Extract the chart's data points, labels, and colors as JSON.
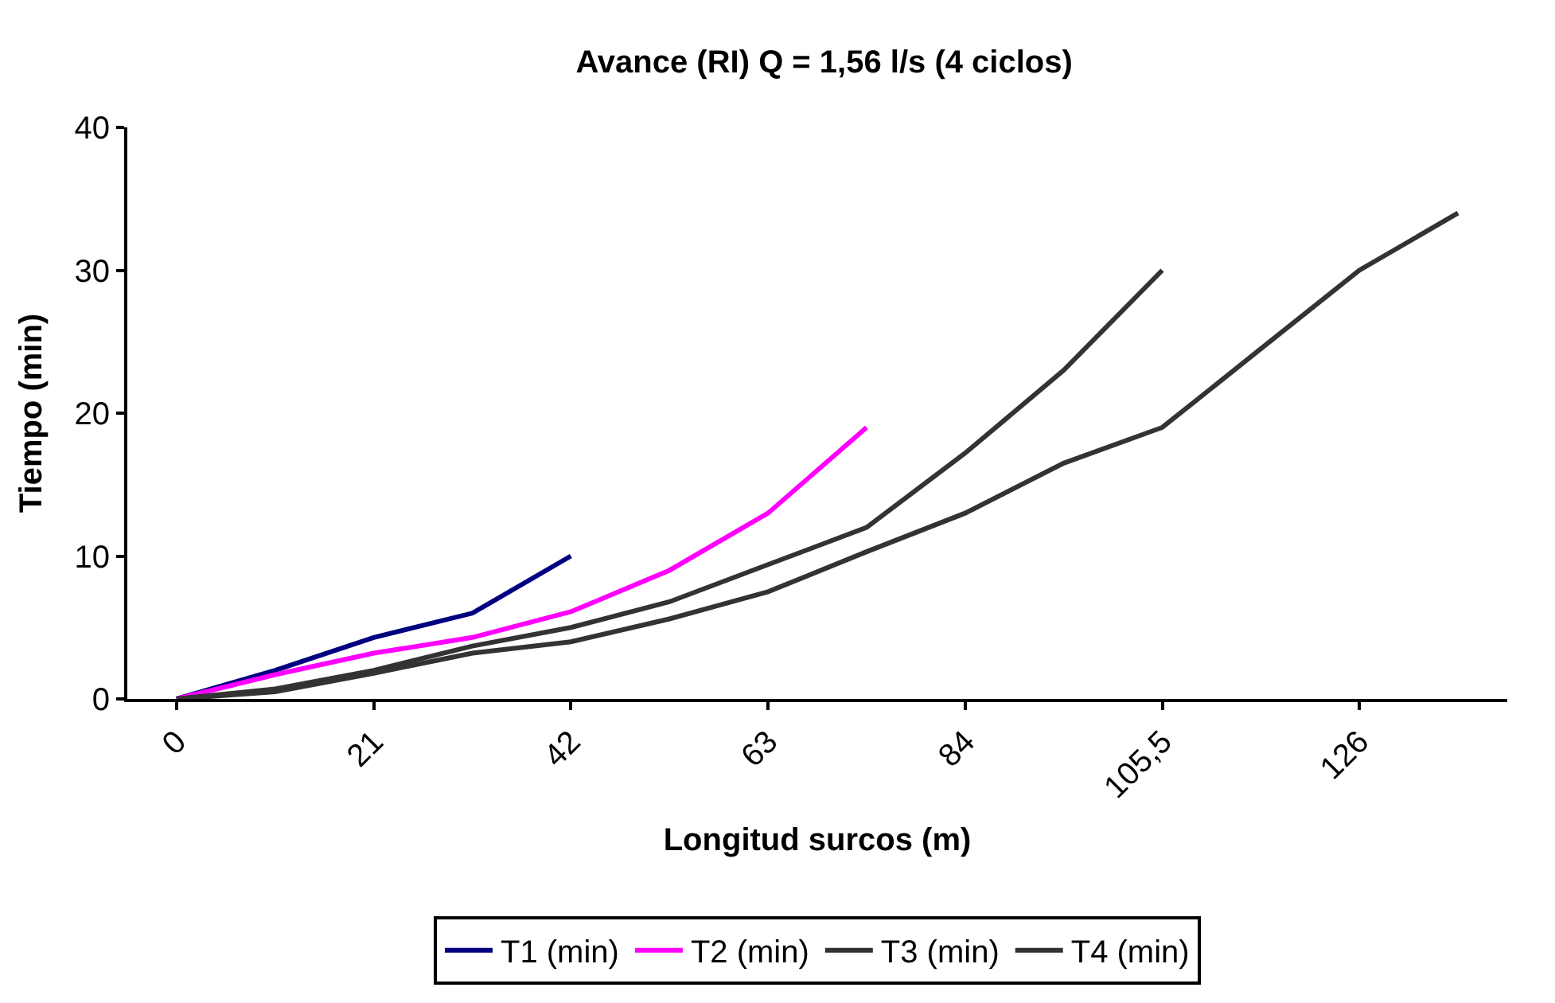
{
  "chart_data": {
    "type": "line",
    "title": "Avance (RI) Q = 1,56 l/s (4 ciclos)",
    "xlabel": "Longitud surcos (m)",
    "ylabel": "Tiempo (min)",
    "categories": [
      "0",
      null,
      "21",
      null,
      "42",
      null,
      "63",
      null,
      "84",
      null,
      "105,5",
      null,
      "126",
      null
    ],
    "series": [
      {
        "name": "T1 (min)",
        "color": "#000080",
        "values": [
          0,
          2,
          4.3,
          6,
          10,
          null,
          null,
          null,
          null,
          null,
          null,
          null,
          null,
          null
        ]
      },
      {
        "name": "T2 (min)",
        "color": "#ff00ff",
        "values": [
          0,
          1.7,
          3.2,
          4.3,
          6.1,
          9,
          13,
          19,
          null,
          null,
          null,
          null,
          null,
          null
        ]
      },
      {
        "name": "T3 (min)",
        "color": "#333333",
        "values": [
          0,
          0.7,
          2,
          3.7,
          5,
          6.8,
          9.4,
          12,
          17.2,
          23,
          30,
          null,
          null,
          null
        ]
      },
      {
        "name": "T4 (min)",
        "color": "#333333",
        "values": [
          0,
          0.5,
          1.8,
          3.2,
          4,
          5.6,
          7.5,
          10.3,
          13,
          16.5,
          19,
          24.5,
          30,
          34
        ]
      }
    ],
    "ylim": [
      0,
      40
    ],
    "yticks": [
      0,
      10,
      20,
      30,
      40
    ],
    "legend": "bottom",
    "marker": "none",
    "line_style": "solid"
  }
}
